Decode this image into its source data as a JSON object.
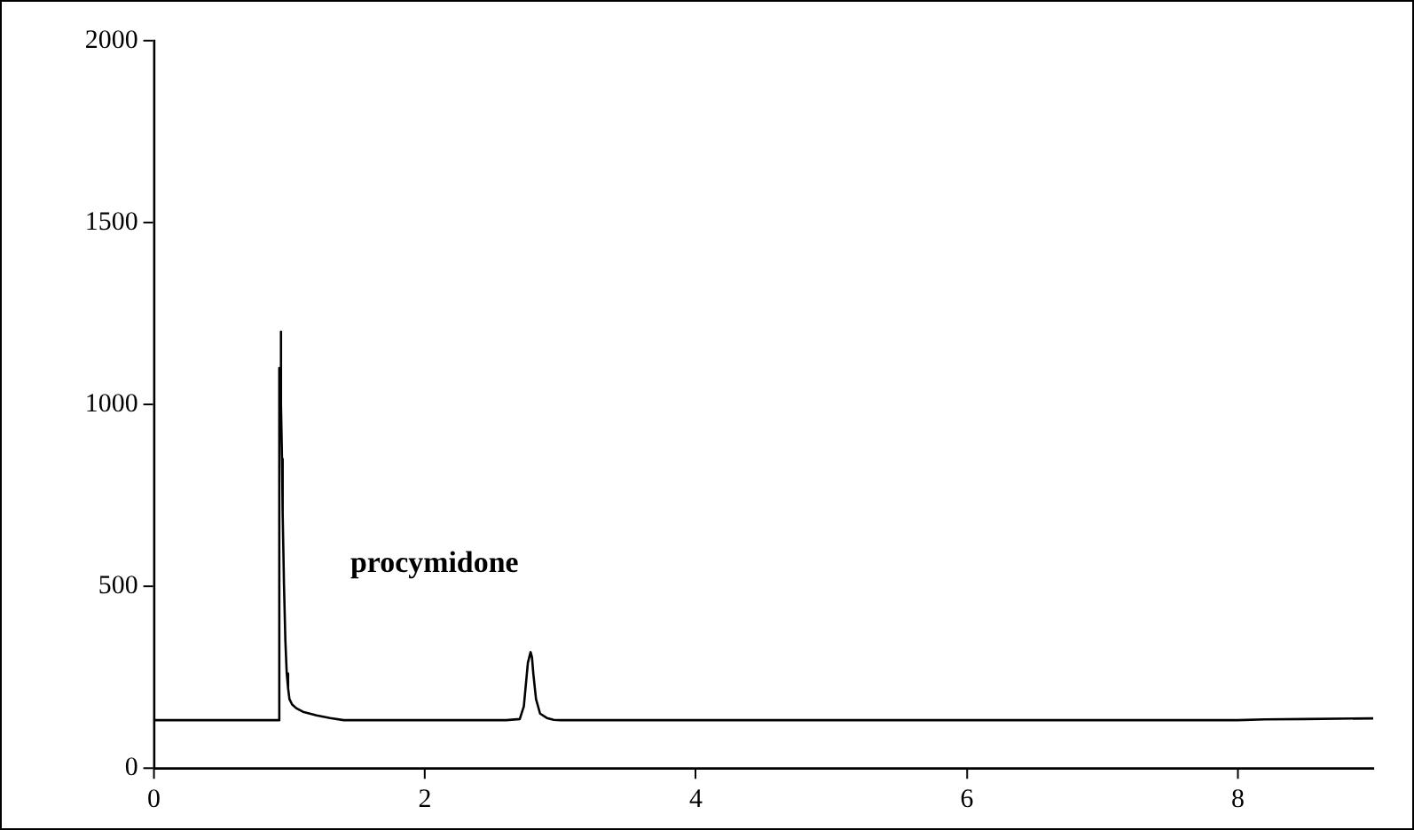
{
  "chart_data": {
    "type": "line",
    "x": [
      0,
      0.5,
      0.92,
      0.925,
      0.93,
      0.935,
      0.94,
      0.945,
      0.95,
      0.96,
      0.97,
      0.98,
      0.99,
      1.0,
      1.02,
      1.05,
      1.1,
      1.2,
      1.3,
      1.4,
      2.0,
      2.6,
      2.7,
      2.73,
      2.76,
      2.78,
      2.79,
      2.8,
      2.82,
      2.85,
      2.9,
      2.95,
      3.0,
      4.0,
      6.0,
      8.0,
      8.2,
      8.5,
      9.0
    ],
    "series": [
      {
        "color": "#000000",
        "values": [
          132,
          132,
          132,
          1100,
          1080,
          1200,
          1000,
          850,
          700,
          500,
          350,
          260,
          220,
          190,
          175,
          165,
          155,
          145,
          138,
          132,
          132,
          132,
          135,
          170,
          290,
          319,
          305,
          260,
          190,
          150,
          138,
          133,
          132,
          132,
          132,
          132,
          134,
          135,
          137
        ]
      }
    ],
    "annotations": [
      "procymidone"
    ],
    "xlim": [
      0,
      9
    ],
    "xticks": [
      0,
      2,
      4,
      6,
      8
    ],
    "ylim": [
      0,
      2000
    ],
    "yticks": [
      0,
      500,
      1000,
      1500,
      2000
    ],
    "grid": false,
    "legend": false,
    "marker": "none",
    "line_style": "solid"
  }
}
